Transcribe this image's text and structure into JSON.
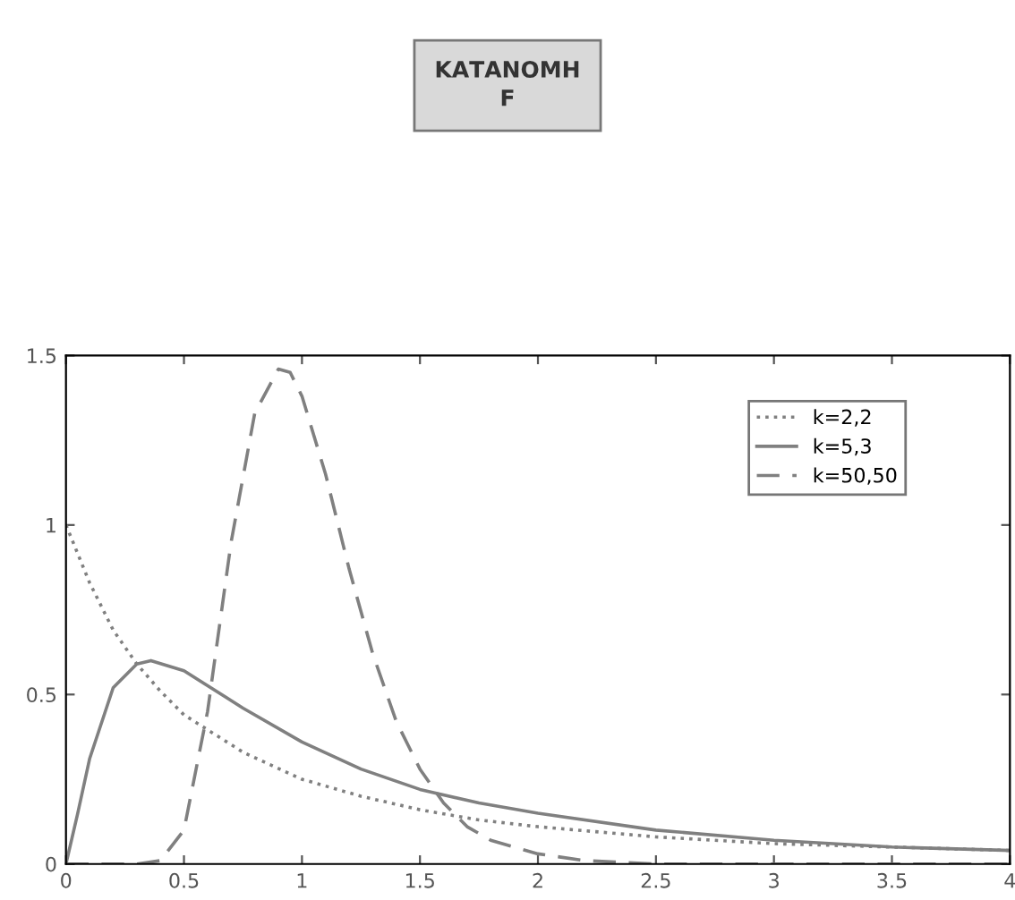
{
  "chart_data": {
    "type": "line",
    "title": "ΚΑΤΑΝΟΜΗ\nF",
    "xlim": [
      0,
      4
    ],
    "ylim": [
      0,
      1.5
    ],
    "xticks": [
      0,
      0.5,
      1,
      1.5,
      2,
      2.5,
      3,
      3.5,
      4
    ],
    "yticks": [
      0,
      0.5,
      1,
      1.5
    ],
    "legend": "top right",
    "grid": false,
    "series": [
      {
        "name": "k=2,2",
        "color": "#808080",
        "line_style": "dotted",
        "x": [
          0,
          0.1,
          0.2,
          0.3,
          0.4,
          0.5,
          0.75,
          1,
          1.25,
          1.5,
          1.75,
          2,
          2.5,
          3,
          3.5,
          4
        ],
        "values": [
          1,
          0.83,
          0.69,
          0.59,
          0.51,
          0.44,
          0.33,
          0.25,
          0.2,
          0.16,
          0.13,
          0.11,
          0.08,
          0.06,
          0.05,
          0.04
        ]
      },
      {
        "name": "k=5,3",
        "color": "#808080",
        "line_style": "solid",
        "x": [
          0,
          0.05,
          0.1,
          0.2,
          0.3,
          0.36,
          0.5,
          0.75,
          1,
          1.25,
          1.5,
          1.75,
          2,
          2.5,
          3,
          3.5,
          4
        ],
        "values": [
          0,
          0.15,
          0.31,
          0.52,
          0.59,
          0.6,
          0.57,
          0.46,
          0.36,
          0.28,
          0.22,
          0.18,
          0.15,
          0.1,
          0.07,
          0.05,
          0.04
        ]
      },
      {
        "name": "k=50,50",
        "color": "#808080",
        "line_style": "dashed",
        "x": [
          0,
          0.3,
          0.4,
          0.5,
          0.6,
          0.7,
          0.8,
          0.9,
          0.95,
          1.0,
          1.1,
          1.2,
          1.3,
          1.4,
          1.5,
          1.6,
          1.7,
          1.8,
          2.0,
          2.2,
          2.5,
          3,
          3.5,
          4
        ],
        "values": [
          0,
          0,
          0.01,
          0.1,
          0.45,
          0.95,
          1.33,
          1.46,
          1.45,
          1.38,
          1.15,
          0.87,
          0.62,
          0.42,
          0.28,
          0.18,
          0.11,
          0.07,
          0.03,
          0.01,
          0,
          0,
          0,
          0
        ]
      }
    ]
  }
}
